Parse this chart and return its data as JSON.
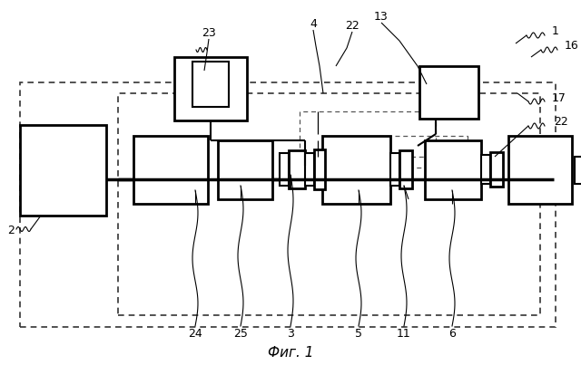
{
  "title": "Фиг. 1",
  "bg_color": "#ffffff",
  "lw_thick": 2.0,
  "lw_mid": 1.5,
  "lw_thin": 0.9,
  "lw_label": 0.8,
  "fontsize": 9
}
